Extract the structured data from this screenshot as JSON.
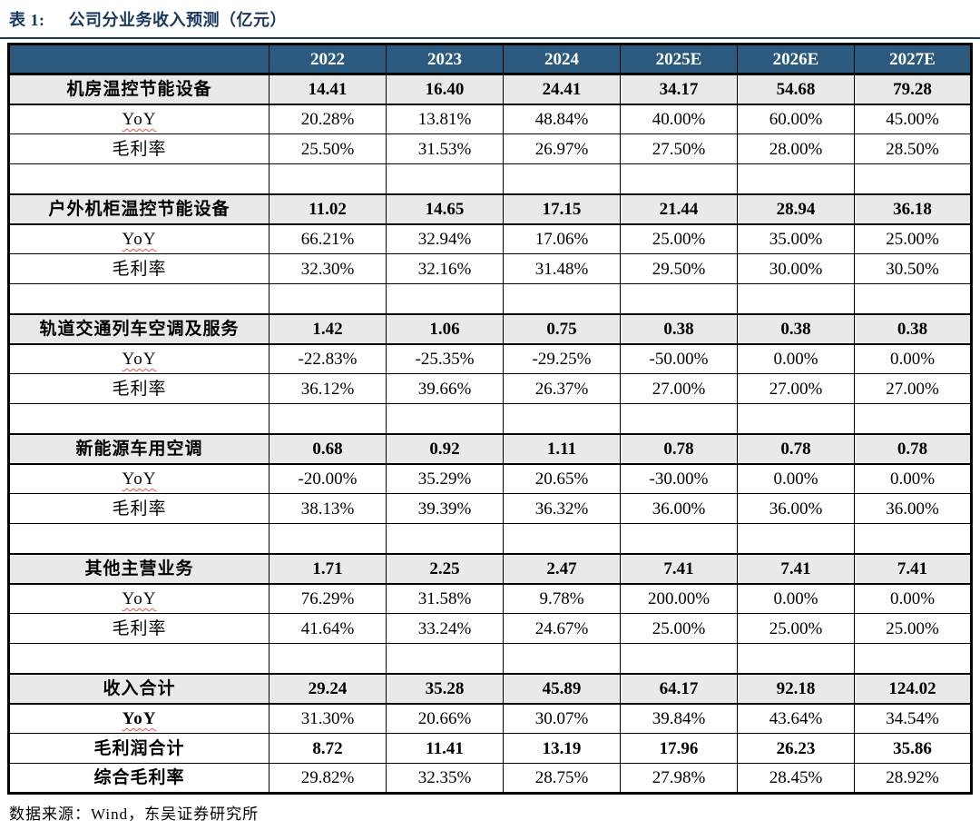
{
  "title": {
    "prefix": "表 1:",
    "text": "公司分业务收入预测（亿元）"
  },
  "footer": {
    "source": "数据来源：Wind，东吴证券研究所"
  },
  "colors": {
    "header_bg": "#2b5a7e",
    "header_text": "#ffffff",
    "section_bg": "#e9e9e9",
    "title_color": "#17375e",
    "wavy_underline": "#e8534a",
    "border_color": "#000000"
  },
  "table": {
    "columns": [
      "",
      "2022",
      "2023",
      "2024",
      "2025E",
      "2026E",
      "2027E"
    ],
    "rows": [
      {
        "style": "section",
        "label": "机房温控节能设备",
        "values": [
          "14.41",
          "16.40",
          "24.41",
          "34.17",
          "54.68",
          "79.28"
        ]
      },
      {
        "style": "yoy",
        "label": "YoY",
        "values": [
          "20.28%",
          "13.81%",
          "48.84%",
          "40.00%",
          "60.00%",
          "45.00%"
        ]
      },
      {
        "style": "plain",
        "label": "毛利率",
        "values": [
          "25.50%",
          "31.53%",
          "26.97%",
          "27.50%",
          "28.00%",
          "28.50%"
        ]
      },
      {
        "style": "spacer",
        "label": "",
        "values": [
          "",
          "",
          "",
          "",
          "",
          ""
        ]
      },
      {
        "style": "section",
        "label": "户外机柜温控节能设备",
        "values": [
          "11.02",
          "14.65",
          "17.15",
          "21.44",
          "28.94",
          "36.18"
        ]
      },
      {
        "style": "yoy",
        "label": "YoY",
        "values": [
          "66.21%",
          "32.94%",
          "17.06%",
          "25.00%",
          "35.00%",
          "25.00%"
        ]
      },
      {
        "style": "plain",
        "label": "毛利率",
        "values": [
          "32.30%",
          "32.16%",
          "31.48%",
          "29.50%",
          "30.00%",
          "30.50%"
        ]
      },
      {
        "style": "spacer",
        "label": "",
        "values": [
          "",
          "",
          "",
          "",
          "",
          ""
        ]
      },
      {
        "style": "section",
        "label": "轨道交通列车空调及服务",
        "values": [
          "1.42",
          "1.06",
          "0.75",
          "0.38",
          "0.38",
          "0.38"
        ]
      },
      {
        "style": "yoy",
        "label": "YoY",
        "values": [
          "-22.83%",
          "-25.35%",
          "-29.25%",
          "-50.00%",
          "0.00%",
          "0.00%"
        ]
      },
      {
        "style": "plain",
        "label": "毛利率",
        "values": [
          "36.12%",
          "39.66%",
          "26.37%",
          "27.00%",
          "27.00%",
          "27.00%"
        ]
      },
      {
        "style": "spacer",
        "label": "",
        "values": [
          "",
          "",
          "",
          "",
          "",
          ""
        ]
      },
      {
        "style": "section",
        "label": "新能源车用空调",
        "values": [
          "0.68",
          "0.92",
          "1.11",
          "0.78",
          "0.78",
          "0.78"
        ]
      },
      {
        "style": "yoy",
        "label": "YoY",
        "values": [
          "-20.00%",
          "35.29%",
          "20.65%",
          "-30.00%",
          "0.00%",
          "0.00%"
        ]
      },
      {
        "style": "plain",
        "label": "毛利率",
        "values": [
          "38.13%",
          "39.39%",
          "36.32%",
          "36.00%",
          "36.00%",
          "36.00%"
        ]
      },
      {
        "style": "spacer",
        "label": "",
        "values": [
          "",
          "",
          "",
          "",
          "",
          ""
        ]
      },
      {
        "style": "section",
        "label": "其他主营业务",
        "values": [
          "1.71",
          "2.25",
          "2.47",
          "7.41",
          "7.41",
          "7.41"
        ]
      },
      {
        "style": "yoy",
        "label": "YoY",
        "values": [
          "76.29%",
          "31.58%",
          "9.78%",
          "200.00%",
          "0.00%",
          "0.00%"
        ]
      },
      {
        "style": "plain",
        "label": "毛利率",
        "values": [
          "41.64%",
          "33.24%",
          "24.67%",
          "25.00%",
          "25.00%",
          "25.00%"
        ]
      },
      {
        "style": "spacer",
        "label": "",
        "values": [
          "",
          "",
          "",
          "",
          "",
          ""
        ]
      },
      {
        "style": "section",
        "label": "收入合计",
        "values": [
          "29.24",
          "35.28",
          "45.89",
          "64.17",
          "92.18",
          "124.02"
        ]
      },
      {
        "style": "total-yoy",
        "label": "YoY",
        "values": [
          "31.30%",
          "20.66%",
          "30.07%",
          "39.84%",
          "43.64%",
          "34.54%"
        ]
      },
      {
        "style": "bold-row",
        "label": "毛利润合计",
        "values": [
          "8.72",
          "11.41",
          "13.19",
          "17.96",
          "26.23",
          "35.86"
        ]
      },
      {
        "style": "bold-label",
        "label": "综合毛利率",
        "values": [
          "29.82%",
          "32.35%",
          "28.75%",
          "27.98%",
          "28.45%",
          "28.92%"
        ]
      }
    ]
  }
}
